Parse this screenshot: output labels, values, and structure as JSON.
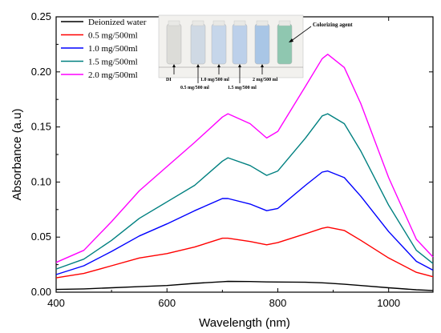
{
  "chart_data": {
    "type": "line",
    "xlabel": "Wavelength (nm)",
    "ylabel": "Absorbance (a.u)",
    "xlim": [
      400,
      1080
    ],
    "ylim": [
      0,
      0.25
    ],
    "xticks": [
      400,
      600,
      800,
      1000
    ],
    "yticks": [
      0.0,
      0.05,
      0.1,
      0.15,
      0.2,
      0.25
    ],
    "ytick_labels": [
      "0.00",
      "0.05",
      "0.10",
      "0.15",
      "0.20",
      "0.25"
    ],
    "xtick_labels": [
      "400",
      "600",
      "800",
      "1000"
    ],
    "legend_position": "top-left",
    "grid": false,
    "x": [
      400,
      450,
      500,
      550,
      600,
      650,
      700,
      710,
      750,
      780,
      800,
      850,
      880,
      890,
      920,
      950,
      1000,
      1050,
      1080
    ],
    "series": [
      {
        "name": "Deionized water",
        "color": "#000000",
        "values": [
          0.0025,
          0.003,
          0.004,
          0.005,
          0.006,
          0.008,
          0.0095,
          0.0098,
          0.0097,
          0.0093,
          0.0092,
          0.009,
          0.0085,
          0.0082,
          0.0072,
          0.006,
          0.004,
          0.0022,
          0.0015
        ]
      },
      {
        "name": "0.5 mg/500ml",
        "color": "#ff0000",
        "values": [
          0.013,
          0.017,
          0.024,
          0.031,
          0.035,
          0.041,
          0.049,
          0.049,
          0.046,
          0.043,
          0.045,
          0.053,
          0.058,
          0.059,
          0.056,
          0.047,
          0.031,
          0.018,
          0.014
        ]
      },
      {
        "name": "1.0 mg/500ml",
        "color": "#0000ff",
        "values": [
          0.016,
          0.024,
          0.037,
          0.051,
          0.062,
          0.074,
          0.085,
          0.085,
          0.08,
          0.074,
          0.076,
          0.097,
          0.109,
          0.11,
          0.104,
          0.087,
          0.055,
          0.028,
          0.02
        ]
      },
      {
        "name": "1.5 mg/500ml",
        "color": "#008080",
        "values": [
          0.021,
          0.03,
          0.047,
          0.067,
          0.082,
          0.097,
          0.119,
          0.122,
          0.115,
          0.106,
          0.11,
          0.14,
          0.16,
          0.162,
          0.153,
          0.128,
          0.079,
          0.038,
          0.026
        ]
      },
      {
        "name": "2.0 mg/500ml",
        "color": "#ff00ff",
        "values": [
          0.027,
          0.038,
          0.064,
          0.092,
          0.114,
          0.136,
          0.159,
          0.162,
          0.153,
          0.14,
          0.146,
          0.187,
          0.212,
          0.216,
          0.204,
          0.171,
          0.104,
          0.048,
          0.032
        ]
      }
    ]
  },
  "inset": {
    "labels": [
      "DI",
      "0.5 mg/500 ml",
      "1.0 mg/500 ml",
      "1.5 mg/500 ml",
      "2 mg/500 ml"
    ],
    "colorizing_label": "Colorizing agent",
    "bottle_colors": [
      "#dcdcd8",
      "#cfd9e4",
      "#c6d6ea",
      "#bcd0ea",
      "#a9c6e6",
      "#8fc7b0"
    ]
  }
}
